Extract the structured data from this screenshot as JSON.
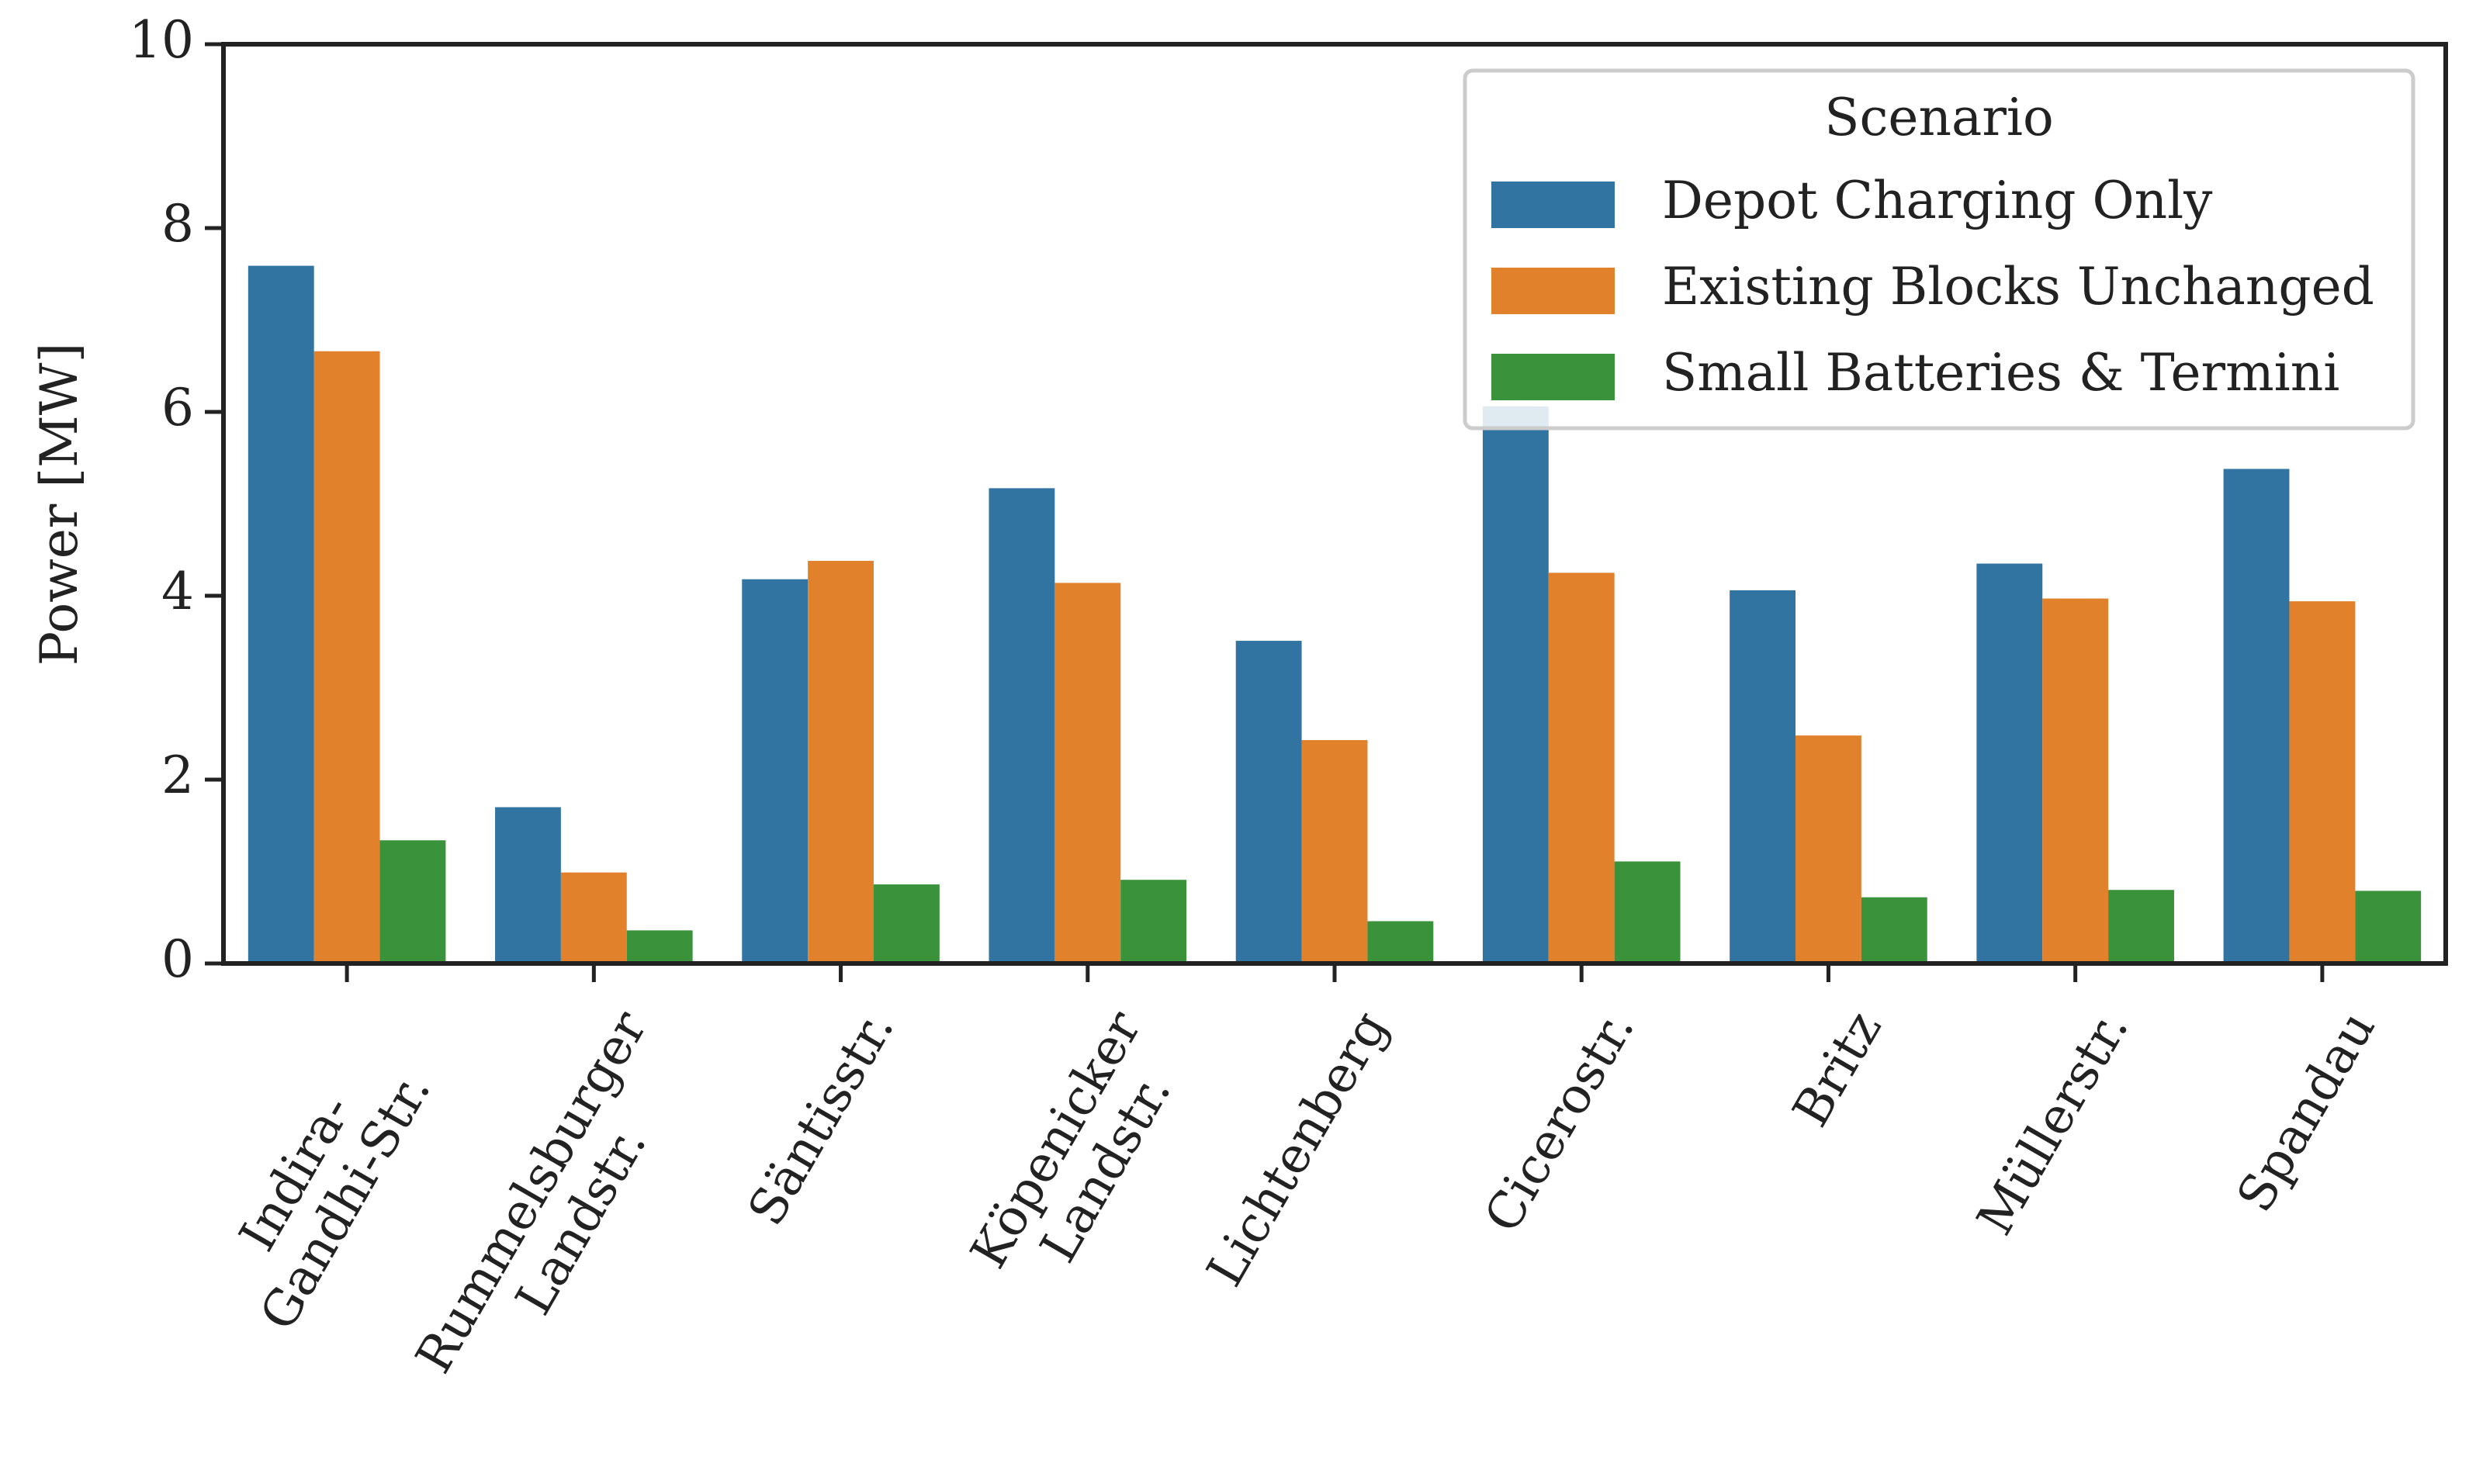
{
  "chart_data": {
    "type": "bar",
    "ylabel": "Power [MW]",
    "categories": [
      "Indira-Gandhi-Str.",
      "Rummelsburger\nLandstr.",
      "Säntisstr.",
      "Köpenicker\nLandstr.",
      "Lichtenberg",
      "Cicerostr.",
      "Britz",
      "Müllerstr.",
      "Spandau"
    ],
    "series": [
      {
        "name": "Depot Charging Only",
        "color": "#3274a1",
        "values": [
          7.59,
          1.7,
          4.18,
          5.17,
          3.51,
          6.06,
          4.06,
          4.35,
          5.38
        ]
      },
      {
        "name": "Existing Blocks Unchanged",
        "color": "#e1812c",
        "values": [
          6.66,
          0.99,
          4.38,
          4.14,
          2.43,
          4.25,
          2.48,
          3.97,
          3.94
        ]
      },
      {
        "name": "Small Batteries & Termini",
        "color": "#3a923a",
        "values": [
          1.34,
          0.36,
          0.86,
          0.91,
          0.46,
          1.11,
          0.72,
          0.8,
          0.79
        ]
      }
    ],
    "legend_title": "Scenario",
    "legend": "upper right",
    "ylim": [
      0,
      10
    ],
    "yticks": [
      0,
      2,
      4,
      6,
      8,
      10
    ],
    "grid": false
  }
}
